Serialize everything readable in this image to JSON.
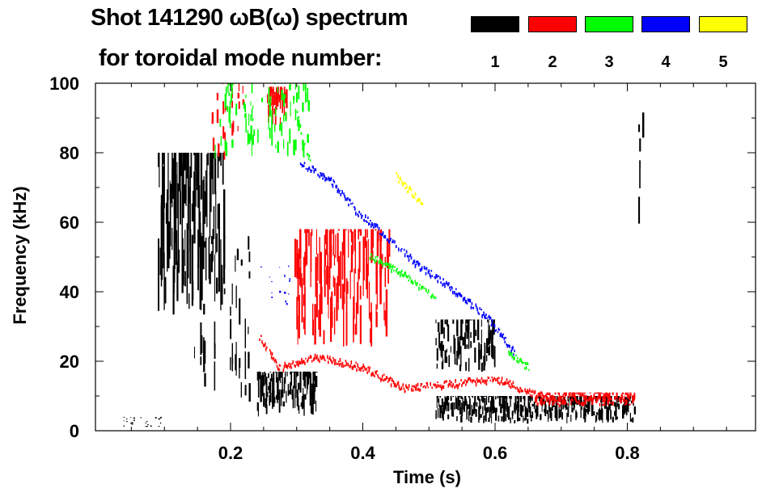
{
  "chart_data": {
    "type": "heatmap",
    "title": "Shot 141290 ωB(ω) spectrum",
    "subtitle": "for toroidal mode number:",
    "xlabel": "Time (s)",
    "ylabel": "Frequency (kHz)",
    "xlim": [
      0,
      1.0
    ],
    "ylim": [
      0,
      100
    ],
    "xticks": [
      "0.2",
      "0.4",
      "0.6",
      "0.8"
    ],
    "xtick_values": [
      0.2,
      0.4,
      0.6,
      0.8
    ],
    "yticks": [
      "0",
      "20",
      "40",
      "60",
      "80",
      "100"
    ],
    "ytick_values": [
      0,
      20,
      40,
      60,
      80,
      100
    ],
    "legend": {
      "placement": "top-right",
      "entries": [
        {
          "label": "1",
          "color": "#000000"
        },
        {
          "label": "2",
          "color": "#ff0000"
        },
        {
          "label": "3",
          "color": "#00ff00"
        },
        {
          "label": "4",
          "color": "#0000ff"
        },
        {
          "label": "5",
          "color": "#ffff00"
        }
      ]
    },
    "series": [
      {
        "name": "1",
        "color": "#000000",
        "regions": [
          {
            "t": [
              0.09,
              0.19
            ],
            "f": [
              32,
              80
            ],
            "density": 0.9
          },
          {
            "t": [
              0.145,
              0.23
            ],
            "f": [
              8,
              56
            ],
            "density": 0.35
          },
          {
            "t": [
              0.24,
              0.33
            ],
            "f": [
              4,
              17
            ],
            "density": 0.9
          },
          {
            "t": [
              0.51,
              0.6
            ],
            "f": [
              17,
              32
            ],
            "density": 0.7
          },
          {
            "t": [
              0.51,
              0.81
            ],
            "f": [
              2,
              10
            ],
            "density": 0.85
          },
          {
            "t": [
              0.035,
              0.095
            ],
            "f": [
              1,
              4
            ],
            "density": 0.2
          },
          {
            "t": [
              0.815,
              0.825
            ],
            "f": [
              56,
              100
            ],
            "density": 0.3
          }
        ],
        "ridges": []
      },
      {
        "name": "2",
        "color": "#ff0000",
        "regions": [
          {
            "t": [
              0.255,
              0.285
            ],
            "f": [
              88,
              99
            ],
            "density": 0.9
          },
          {
            "t": [
              0.17,
              0.22
            ],
            "f": [
              78,
              100
            ],
            "density": 0.3
          },
          {
            "t": [
              0.295,
              0.44
            ],
            "f": [
              24,
              58
            ],
            "density": 0.75
          },
          {
            "t": [
              0.66,
              0.81
            ],
            "f": [
              7,
              11
            ],
            "density": 0.8
          }
        ],
        "ridges": [
          {
            "points": [
              [
                0.243,
                27
              ],
              [
                0.273,
                18
              ],
              [
                0.33,
                21
              ],
              [
                0.4,
                18
              ],
              [
                0.463,
                12
              ],
              [
                0.52,
                13
              ],
              [
                0.6,
                15
              ],
              [
                0.65,
                11
              ],
              [
                0.7,
                8
              ]
            ]
          }
        ]
      },
      {
        "name": "3",
        "color": "#00ff00",
        "regions": [
          {
            "t": [
              0.17,
              0.32
            ],
            "f": [
              78,
              100
            ],
            "density": 0.35
          }
        ],
        "ridges": [
          {
            "points": [
              [
                0.3,
                92
              ],
              [
                0.31,
                82
              ],
              [
                0.32,
                78
              ]
            ]
          },
          {
            "points": [
              [
                0.41,
                50
              ],
              [
                0.46,
                45
              ],
              [
                0.51,
                38
              ]
            ]
          },
          {
            "points": [
              [
                0.62,
                22
              ],
              [
                0.65,
                18
              ]
            ]
          }
        ]
      },
      {
        "name": "4",
        "color": "#0000ff",
        "regions": [
          {
            "t": [
              0.245,
              0.29
            ],
            "f": [
              36,
              48
            ],
            "density": 0.1
          }
        ],
        "ridges": [
          {
            "points": [
              [
                0.305,
                77
              ],
              [
                0.35,
                72
              ],
              [
                0.39,
                63
              ],
              [
                0.44,
                55
              ],
              [
                0.48,
                48
              ],
              [
                0.54,
                40
              ],
              [
                0.59,
                32
              ],
              [
                0.63,
                22
              ]
            ]
          }
        ]
      },
      {
        "name": "5",
        "color": "#ffff00",
        "regions": [],
        "ridges": [
          {
            "points": [
              [
                0.45,
                73
              ],
              [
                0.47,
                69
              ],
              [
                0.49,
                65
              ]
            ]
          }
        ]
      }
    ]
  }
}
